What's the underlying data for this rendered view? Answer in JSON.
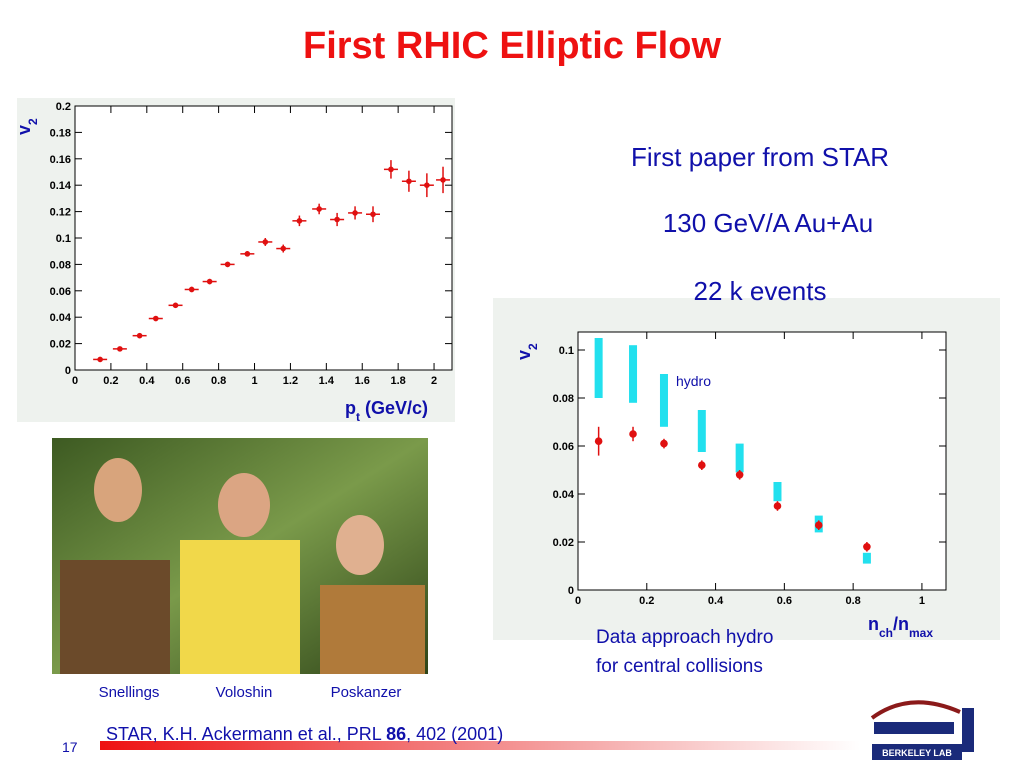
{
  "title": "First RHIC Elliptic Flow",
  "notes": [
    "First paper from STAR",
    "130 GeV/A Au+Au",
    "22 k events"
  ],
  "caption": [
    "Data approach hydro",
    "for central collisions"
  ],
  "photo_names": [
    "Snellings",
    "Voloshin",
    "Poskanzer"
  ],
  "citation": {
    "pre": "STAR, K.H. Ackermann et al., PRL ",
    "volume": "86",
    "post": ", 402 (2001)"
  },
  "slide_number": "17",
  "logo": "BERKELEY LAB",
  "chart_data": [
    {
      "type": "scatter",
      "y_label": {
        "main": "v",
        "sub": "2"
      },
      "x_label": {
        "main": "p",
        "sub": "t",
        "unit": "(GeV/c)"
      },
      "x": [
        0.14,
        0.25,
        0.36,
        0.45,
        0.56,
        0.65,
        0.75,
        0.85,
        0.96,
        1.06,
        1.16,
        1.25,
        1.36,
        1.46,
        1.56,
        1.66,
        1.76,
        1.86,
        1.96,
        2.05
      ],
      "values": [
        0.008,
        0.016,
        0.026,
        0.039,
        0.049,
        0.061,
        0.067,
        0.08,
        0.088,
        0.097,
        0.092,
        0.113,
        0.122,
        0.114,
        0.119,
        0.118,
        0.152,
        0.143,
        0.14,
        0.144
      ],
      "errors": [
        0.001,
        0.001,
        0.001,
        0.001,
        0.001,
        0.002,
        0.002,
        0.002,
        0.002,
        0.003,
        0.003,
        0.004,
        0.004,
        0.005,
        0.005,
        0.006,
        0.007,
        0.008,
        0.009,
        0.01
      ],
      "color": "#e01010",
      "xlim": [
        0,
        2.1
      ],
      "ylim": [
        0,
        0.2
      ],
      "xticks": [
        0,
        0.2,
        0.4,
        0.6,
        0.8,
        1,
        1.2,
        1.4,
        1.6,
        1.8,
        2
      ],
      "yticks": [
        0,
        0.02,
        0.04,
        0.06,
        0.08,
        0.1,
        0.12,
        0.14,
        0.16,
        0.18,
        0.2
      ]
    },
    {
      "type": "scatter",
      "y_label": {
        "main": "v",
        "sub": "2"
      },
      "x_label": {
        "main": "n",
        "sub": "ch",
        "mid": "/n",
        "sub2": "max"
      },
      "x": [
        0.06,
        0.16,
        0.25,
        0.36,
        0.47,
        0.58,
        0.7,
        0.84
      ],
      "values": [
        0.062,
        0.065,
        0.061,
        0.052,
        0.048,
        0.035,
        0.027,
        0.018
      ],
      "errors": [
        0.006,
        0.003,
        0.002,
        0.002,
        0.002,
        0.002,
        0.002,
        0.002
      ],
      "color": "#e01010",
      "hydro": {
        "label": "hydro",
        "color": "#22e0ee",
        "low": [
          0.08,
          0.078,
          0.068,
          0.0575,
          0.049,
          0.037,
          0.024,
          0.011
        ],
        "high": [
          0.105,
          0.102,
          0.09,
          0.075,
          0.061,
          0.045,
          0.031,
          0.0155
        ]
      },
      "xlim": [
        0,
        1.07
      ],
      "ylim": [
        0,
        0.1075
      ],
      "xticks": [
        0,
        0.2,
        0.4,
        0.6,
        0.8,
        1
      ],
      "yticks": [
        0,
        0.02,
        0.04,
        0.06,
        0.08,
        0.1
      ]
    }
  ]
}
